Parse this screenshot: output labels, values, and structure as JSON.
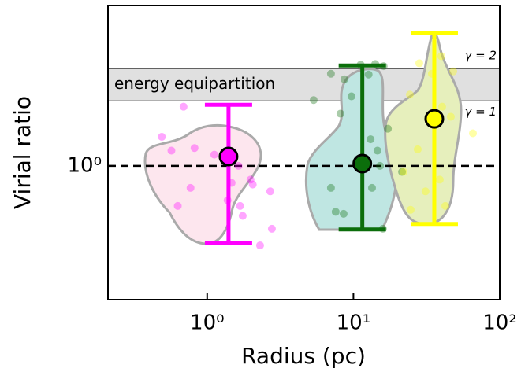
{
  "chart_data": {
    "type": "violin",
    "xlabel": "Radius (pc)",
    "ylabel": "Virial ratio",
    "log_x": true,
    "log_y": true,
    "xlim": [
      0.21,
      100
    ],
    "ylim": [
      0.4,
      3
    ],
    "xticks": [
      {
        "value": 1,
        "label": "10⁰"
      },
      {
        "value": 10,
        "label": "10¹"
      },
      {
        "value": 100,
        "label": "10²"
      }
    ],
    "yticks": [
      {
        "value": 1,
        "label": "10⁰"
      }
    ],
    "reference_line": 1,
    "band": [
      1.56,
      1.95
    ],
    "annotations": [
      "energy equipartition",
      "γ = 2",
      "γ = 1"
    ],
    "series": [
      {
        "color": "#ff00ff",
        "x": 1.4,
        "y": 1.066,
        "lower": 0.588,
        "upper": 1.52,
        "points_x": [
          0.69,
          0.49,
          0.57,
          0.82,
          0.77,
          0.63,
          1.12,
          1.64,
          1.98,
          1.68,
          1.75,
          2.05,
          1.47,
          2.7,
          2.77,
          2.3,
          1.38
        ],
        "points_y": [
          1.5,
          1.22,
          1.11,
          1.13,
          0.86,
          0.76,
          1.08,
          1.0,
          0.91,
          0.76,
          0.71,
          0.88,
          0.89,
          0.84,
          0.65,
          0.58,
          0.79
        ]
      },
      {
        "color": "#0b6e0b",
        "x": 11.5,
        "y": 1.016,
        "lower": 0.647,
        "upper": 1.99,
        "points_x": [
          5.35,
          7.02,
          8.15,
          8.67,
          11.2,
          12.7,
          14.1,
          16.1,
          9.7,
          17.2,
          13.1,
          14.6,
          15.2,
          11.1,
          13.4,
          7.56,
          8.57,
          7.02,
          15.9,
          21.5
        ],
        "points_y": [
          1.57,
          1.88,
          1.43,
          1.81,
          2.0,
          1.87,
          2.01,
          1.98,
          1.61,
          1.29,
          1.2,
          1.11,
          1.0,
          0.98,
          0.86,
          0.73,
          0.72,
          0.86,
          0.65,
          0.96
        ]
      },
      {
        "color": "#ffff00",
        "x": 35.7,
        "y": 1.38,
        "lower": 0.672,
        "upper": 2.49,
        "points_x": [
          28.2,
          34.4,
          39.9,
          48.1,
          24.3,
          40.4,
          46.3,
          65.6,
          22.0,
          31.1,
          38.9,
          24.6,
          42.5,
          27.5
        ],
        "points_y": [
          2.02,
          1.88,
          2.12,
          1.91,
          1.63,
          1.5,
          1.4,
          1.25,
          0.96,
          0.84,
          0.91,
          0.74,
          0.76,
          1.12
        ]
      }
    ]
  }
}
